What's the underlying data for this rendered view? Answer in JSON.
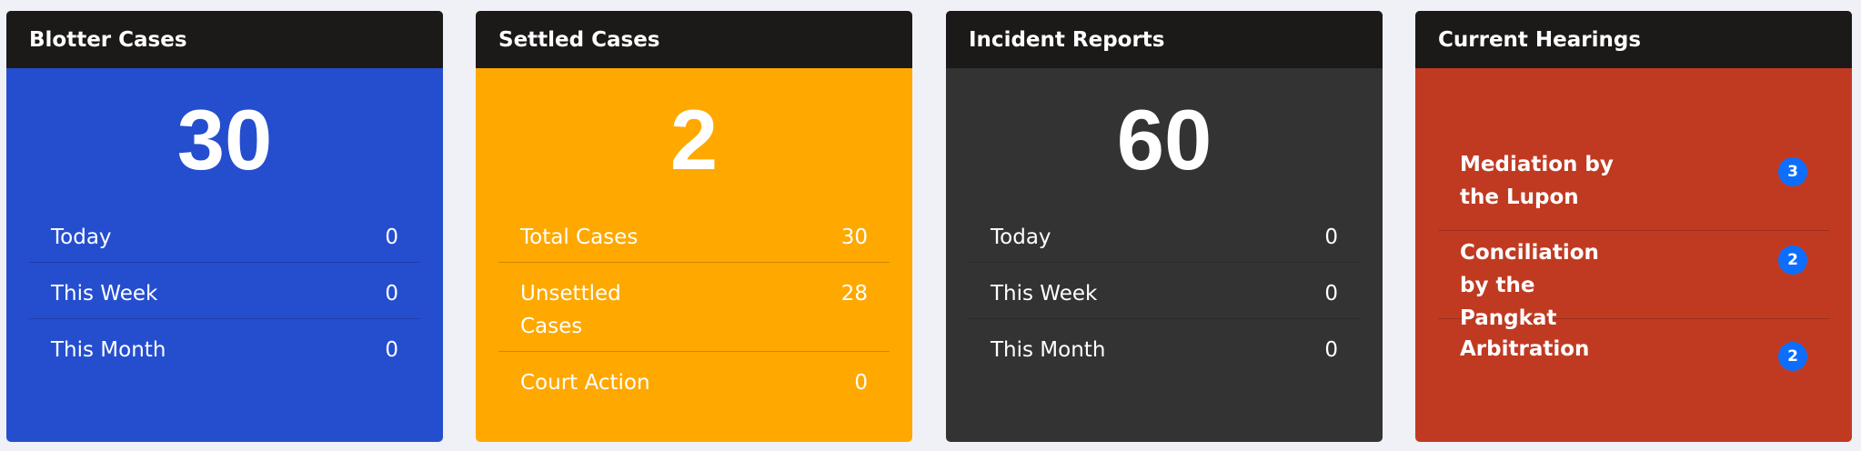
{
  "colors": {
    "header": "#1c1a18",
    "blotter": "#254ecf",
    "settled": "#fea800",
    "incident": "#333333",
    "hearings": "#c03a22",
    "badge": "#0d6efd"
  },
  "cards": [
    {
      "title": "Blotter Cases",
      "count": "30",
      "rows": [
        {
          "label": "Today",
          "value": "0"
        },
        {
          "label": "This Week",
          "value": "0"
        },
        {
          "label": "This Month",
          "value": "0"
        }
      ]
    },
    {
      "title": "Settled Cases",
      "count": "2",
      "rows": [
        {
          "label": "Total Cases",
          "value": "30"
        },
        {
          "label": "Unsettled Cases",
          "value": "28"
        },
        {
          "label": "Court Action",
          "value": "0"
        }
      ]
    },
    {
      "title": "Incident Reports",
      "count": "60",
      "rows": [
        {
          "label": "Today",
          "value": "0"
        },
        {
          "label": "This Week",
          "value": "0"
        },
        {
          "label": "This Month",
          "value": "0"
        }
      ]
    },
    {
      "title": "Current Hearings",
      "rows": [
        {
          "label": "Mediation by the Lupon",
          "count": "3"
        },
        {
          "label": "Conciliation by the Pangkat",
          "count": "2"
        },
        {
          "label": "Arbitration",
          "count": "2"
        }
      ]
    }
  ]
}
